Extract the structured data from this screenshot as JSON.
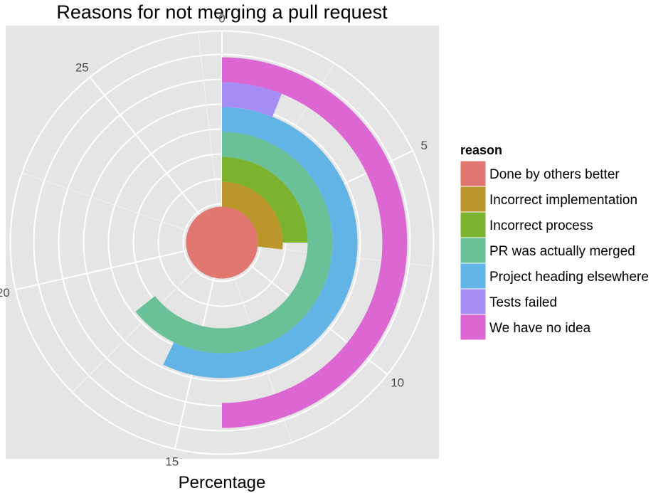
{
  "chart_data": {
    "type": "bar",
    "coord": "polar",
    "title": "Reasons for not merging a pull request",
    "xlabel": "Percentage",
    "ylabel": "",
    "theta_range": [
      0,
      28
    ],
    "theta_ticks": [
      "0",
      "5",
      "10",
      "15",
      "20",
      "25"
    ],
    "theta_tick_values": [
      0,
      5,
      10,
      15,
      20,
      25
    ],
    "grid": true,
    "legend": {
      "title": "reason",
      "position": "right"
    },
    "series": [
      {
        "name": "Done by others better",
        "value": 28,
        "color": "#E07771"
      },
      {
        "name": "Incorrect implementation",
        "value": 7.5,
        "color": "#BB962B"
      },
      {
        "name": "Incorrect process",
        "value": 7.0,
        "color": "#7BB32E"
      },
      {
        "name": "PR was actually merged",
        "value": 18.0,
        "color": "#6BC197"
      },
      {
        "name": "Project heading elsewhere",
        "value": 16.0,
        "color": "#63B4E6"
      },
      {
        "name": "Tests failed",
        "value": 1.7,
        "color": "#A68CF5"
      },
      {
        "name": "We have no idea",
        "value": 14.0,
        "color": "#DC66D2"
      }
    ]
  }
}
